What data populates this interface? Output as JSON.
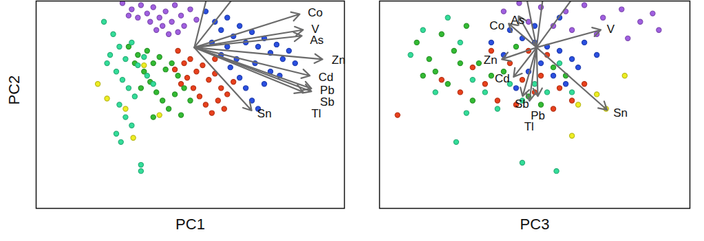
{
  "chart_data": [
    {
      "type": "biplot",
      "x_label": "PC1",
      "y_label": "PC2",
      "xlim": [
        0,
        100
      ],
      "ylim": [
        0,
        100
      ],
      "tick_labels": false,
      "series": [
        {
          "color": "#a05fe0",
          "values": [
            [
              28,
              99
            ],
            [
              31,
              96
            ],
            [
              34,
              98
            ],
            [
              36,
              94
            ],
            [
              38,
              97
            ],
            [
              40,
              92
            ],
            [
              42,
              95
            ],
            [
              44,
              90
            ],
            [
              45,
              98
            ],
            [
              47,
              93
            ],
            [
              48,
              88
            ],
            [
              50,
              96
            ],
            [
              41,
              88
            ],
            [
              37,
              90
            ],
            [
              33,
              92
            ],
            [
              46,
              85
            ],
            [
              43,
              84
            ],
            [
              39,
              86
            ],
            [
              52,
              91
            ],
            [
              30,
              93
            ]
          ]
        },
        {
          "color": "#2a4fe0",
          "values": [
            [
              55,
              95
            ],
            [
              58,
              90
            ],
            [
              60,
              86
            ],
            [
              62,
              92
            ],
            [
              64,
              83
            ],
            [
              66,
              88
            ],
            [
              68,
              80
            ],
            [
              70,
              85
            ],
            [
              72,
              78
            ],
            [
              74,
              82
            ],
            [
              76,
              75
            ],
            [
              78,
              79
            ],
            [
              80,
              72
            ],
            [
              82,
              76
            ],
            [
              84,
              70
            ],
            [
              60,
              74
            ],
            [
              63,
              68
            ],
            [
              66,
              63
            ],
            [
              68,
              58
            ],
            [
              70,
              52
            ],
            [
              72,
              48
            ],
            [
              74,
              60
            ],
            [
              76,
              66
            ],
            [
              79,
              64
            ],
            [
              57,
              80
            ],
            [
              62,
              78
            ],
            [
              65,
              72
            ],
            [
              71,
              70
            ]
          ]
        },
        {
          "color": "#e8401c",
          "values": [
            [
              46,
              76
            ],
            [
              48,
              70
            ],
            [
              50,
              72
            ],
            [
              52,
              66
            ],
            [
              54,
              69
            ],
            [
              56,
              62
            ],
            [
              58,
              65
            ],
            [
              60,
              58
            ],
            [
              62,
              55
            ],
            [
              49,
              63
            ],
            [
              51,
              58
            ],
            [
              53,
              54
            ],
            [
              55,
              50
            ],
            [
              57,
              46
            ],
            [
              59,
              52
            ],
            [
              61,
              48
            ],
            [
              47,
              60
            ],
            [
              45,
              67
            ],
            [
              58,
              72
            ],
            [
              64,
              61
            ]
          ]
        },
        {
          "color": "#33bb33",
          "values": [
            [
              30,
              78
            ],
            [
              33,
              74
            ],
            [
              36,
              76
            ],
            [
              38,
              70
            ],
            [
              40,
              73
            ],
            [
              42,
              67
            ],
            [
              44,
              70
            ],
            [
              46,
              64
            ],
            [
              48,
              58
            ],
            [
              35,
              66
            ],
            [
              37,
              61
            ],
            [
              39,
              56
            ],
            [
              41,
              52
            ],
            [
              43,
              48
            ],
            [
              45,
              55
            ],
            [
              32,
              70
            ],
            [
              50,
              52
            ],
            [
              47,
              45
            ],
            [
              34,
              58
            ],
            [
              38,
              44
            ]
          ]
        },
        {
          "color": "#33dd99",
          "values": [
            [
              22,
              90
            ],
            [
              25,
              84
            ],
            [
              27,
              78
            ],
            [
              29,
              72
            ],
            [
              31,
              80
            ],
            [
              33,
              69
            ],
            [
              35,
              73
            ],
            [
              26,
              66
            ],
            [
              28,
              62
            ],
            [
              30,
              58
            ],
            [
              32,
              54
            ],
            [
              24,
              74
            ],
            [
              36,
              64
            ],
            [
              38,
              60
            ],
            [
              27,
              50
            ],
            [
              29,
              44
            ],
            [
              31,
              40
            ],
            [
              26,
              36
            ],
            [
              27.5,
              32
            ],
            [
              34,
              21
            ],
            [
              34,
              18
            ],
            [
              23,
              70
            ]
          ]
        },
        {
          "color": "#eeee22",
          "values": [
            [
              23,
              53
            ],
            [
              29,
              48
            ],
            [
              40,
              45
            ],
            [
              31.5,
              34
            ],
            [
              35,
              69
            ],
            [
              20,
              60
            ]
          ]
        }
      ],
      "loadings": {
        "origin": [
          51.3,
          77.6
        ],
        "names": [
          "Co",
          "V",
          "As",
          "Zn",
          "Cd",
          "Pb",
          "Tl",
          "Sb",
          "Sn",
          null,
          null
        ],
        "x": [
          85.5,
          86.6,
          86.2,
          92.9,
          88.8,
          89.3,
          86.6,
          89.3,
          69.9,
          56.5,
          67.6
        ],
        "y": [
          93.7,
          86.1,
          83.2,
          71.9,
          64.0,
          57.8,
          56.1,
          56.4,
          47.2,
          108.3,
          108.3
        ]
      }
    },
    {
      "type": "biplot",
      "x_label": "PC3",
      "xlim": [
        0,
        100
      ],
      "ylim": [
        0,
        100
      ],
      "tick_labels": false,
      "series": [
        {
          "color": "#a05fe0",
          "values": [
            [
              45,
              99
            ],
            [
              52,
              97
            ],
            [
              60,
              95
            ],
            [
              66,
              98
            ],
            [
              72,
              92
            ],
            [
              78,
              96
            ],
            [
              84,
              90
            ],
            [
              88,
              94
            ],
            [
              56,
              88
            ],
            [
              62,
              86
            ],
            [
              70,
              84
            ],
            [
              80,
              82
            ],
            [
              48,
              90
            ],
            [
              40,
              95
            ],
            [
              90,
              86
            ]
          ]
        },
        {
          "color": "#2a4fe0",
          "values": [
            [
              42,
              86
            ],
            [
              46,
              82
            ],
            [
              50,
              80
            ],
            [
              54,
              78
            ],
            [
              58,
              76
            ],
            [
              62,
              72
            ],
            [
              66,
              80
            ],
            [
              52,
              70
            ],
            [
              48,
              66
            ],
            [
              56,
              64
            ],
            [
              60,
              60
            ],
            [
              44,
              58
            ],
            [
              40,
              74
            ],
            [
              36,
              80
            ],
            [
              64,
              68
            ],
            [
              70,
              74
            ],
            [
              50,
              88
            ],
            [
              58,
              92
            ]
          ]
        },
        {
          "color": "#e8401c",
          "values": [
            [
              5.8,
              45
            ],
            [
              20,
              62
            ],
            [
              26,
              56
            ],
            [
              30,
              68
            ],
            [
              34,
              60
            ],
            [
              38,
              52
            ],
            [
              42,
              70
            ],
            [
              46,
              62
            ],
            [
              50,
              56
            ],
            [
              54,
              74
            ],
            [
              58,
              58
            ],
            [
              62,
              52
            ],
            [
              48,
              76
            ],
            [
              52,
              64
            ],
            [
              44,
              50
            ],
            [
              56,
              48
            ],
            [
              36,
              76
            ],
            [
              66,
              60
            ]
          ]
        },
        {
          "color": "#33bb33",
          "values": [
            [
              12,
              80
            ],
            [
              16,
              72
            ],
            [
              20,
              84
            ],
            [
              24,
              76
            ],
            [
              28,
              88
            ],
            [
              32,
              70
            ],
            [
              36,
              64
            ],
            [
              18,
              66
            ],
            [
              22,
              60
            ],
            [
              40,
              66
            ],
            [
              44,
              78
            ],
            [
              48,
              54
            ],
            [
              52,
              50
            ],
            [
              56,
              68
            ],
            [
              60,
              64
            ],
            [
              30,
              52
            ],
            [
              26,
              70
            ],
            [
              14,
              64
            ]
          ]
        },
        {
          "color": "#33dd99",
          "values": [
            [
              10,
              74
            ],
            [
              14,
              86
            ],
            [
              22,
              92
            ],
            [
              26,
              80
            ],
            [
              30,
              62
            ],
            [
              34,
              56
            ],
            [
              38,
              48
            ],
            [
              42,
              60
            ],
            [
              46,
              52
            ],
            [
              50,
              60
            ],
            [
              54,
              56
            ],
            [
              58,
              70
            ],
            [
              24.7,
              32
            ],
            [
              46,
              22
            ],
            [
              57,
              18
            ],
            [
              18,
              56
            ],
            [
              62,
              56
            ],
            [
              28,
              46
            ]
          ]
        },
        {
          "color": "#eeee22",
          "values": [
            [
              79,
              64
            ],
            [
              73,
              48
            ],
            [
              62,
              35
            ],
            [
              70,
              55
            ],
            [
              64,
              50
            ]
          ]
        }
      ],
      "loadings": {
        "origin": [
          50.6,
          77.6
        ],
        "names": [
          "As",
          "Co",
          "V",
          "Zn",
          "Cd",
          "Sb",
          "Tl",
          "Pb",
          "Sn",
          null,
          null,
          null
        ],
        "x": [
          44.8,
          41.6,
          71.3,
          39.4,
          43.2,
          46.1,
          48.3,
          51.0,
          73.3,
          53.2,
          65.5,
          46.5
        ],
        "y": [
          92.7,
          89.1,
          86.1,
          71.9,
          63.4,
          54.1,
          51.8,
          54.1,
          47.5,
          108.0,
          108.0,
          108.0
        ]
      }
    }
  ]
}
